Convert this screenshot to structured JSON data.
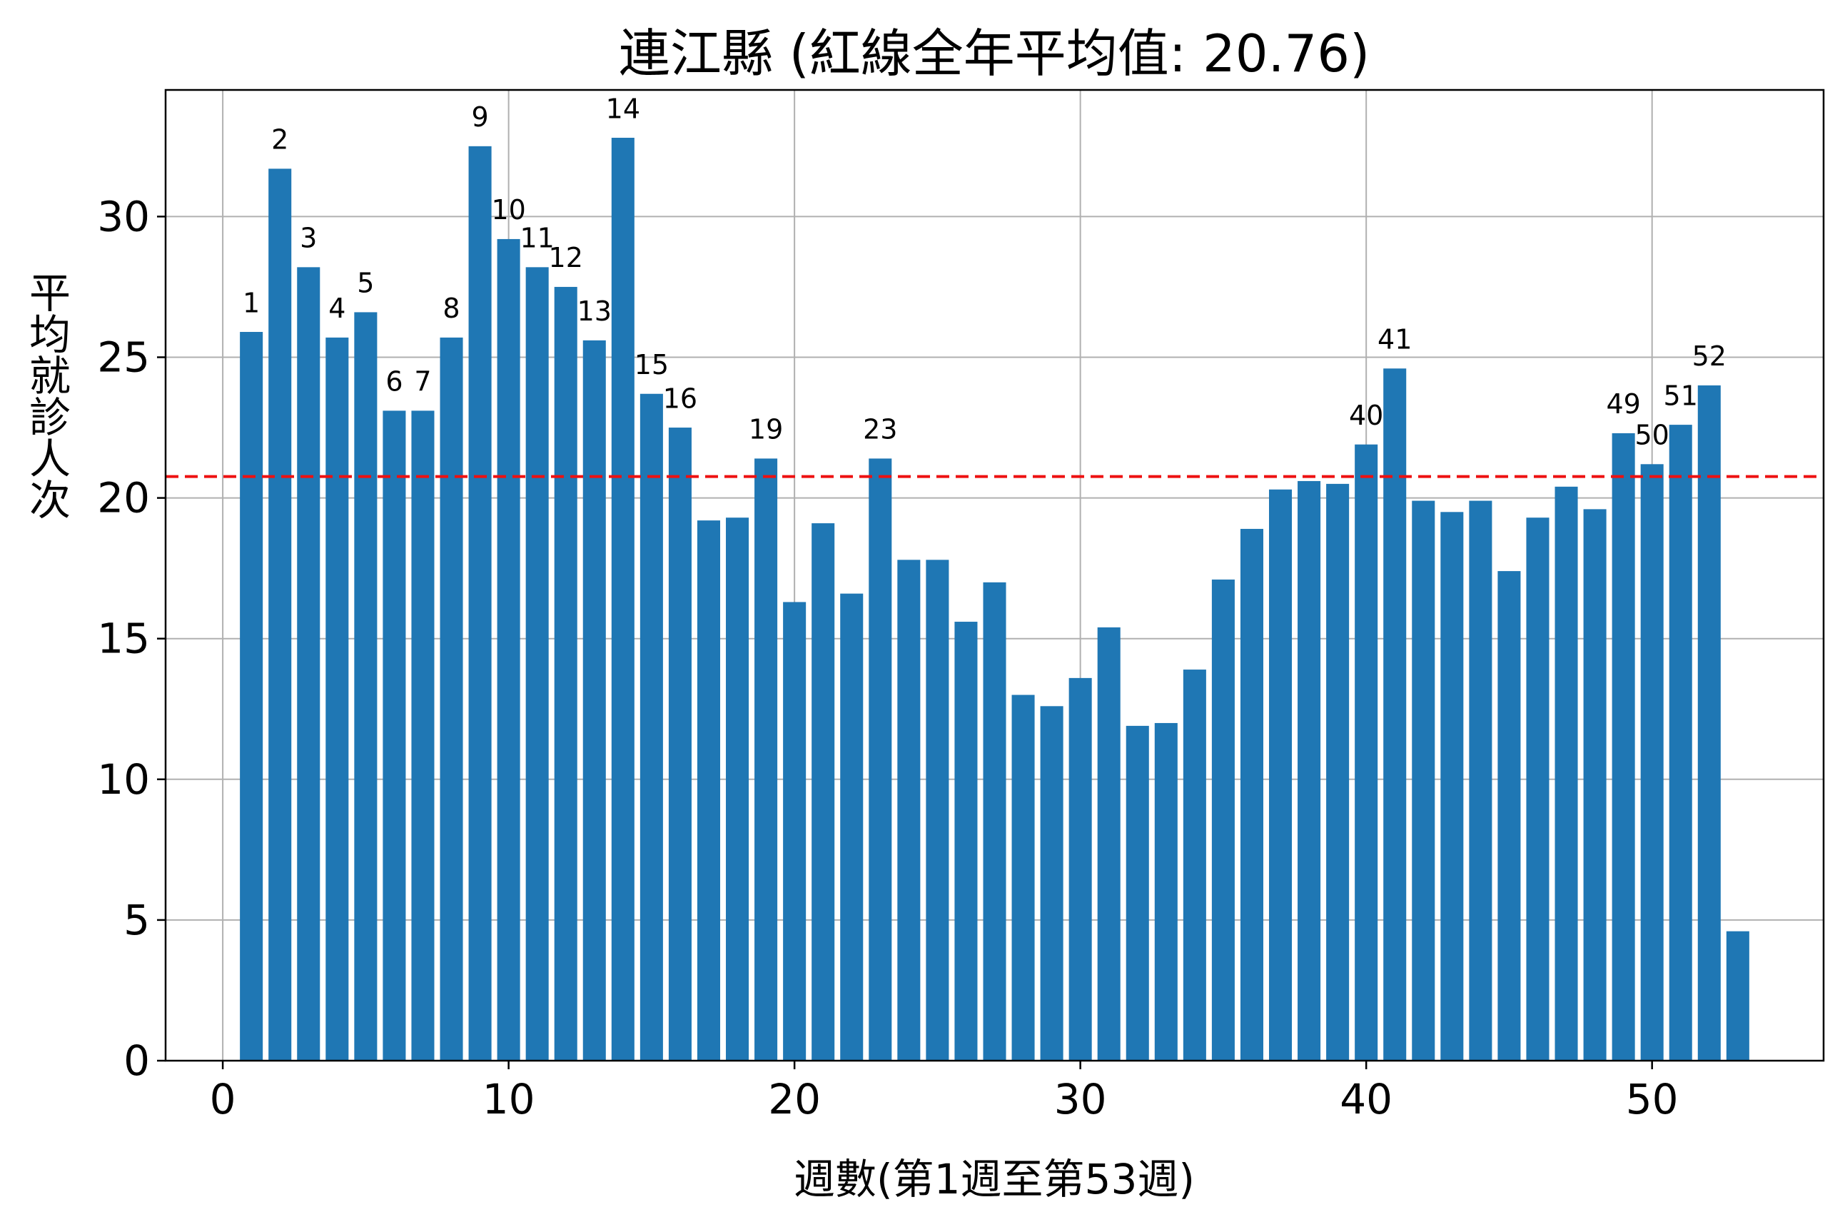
{
  "chart_data": {
    "type": "bar",
    "title": "連江縣 (紅線全年平均值: 20.76)",
    "xlabel": "週數(第1週至第53週)",
    "ylabel": "平均就診人次",
    "xlim": [
      -2,
      56
    ],
    "ylim": [
      0,
      34.5
    ],
    "xticks": [
      0,
      10,
      20,
      30,
      40,
      50
    ],
    "yticks": [
      0,
      5,
      10,
      15,
      20,
      25,
      30
    ],
    "grid": true,
    "mean_line": {
      "value": 20.76,
      "color": "#ee1111",
      "style": "dashed"
    },
    "bar_color": "#1f77b4",
    "weeks": [
      1,
      2,
      3,
      4,
      5,
      6,
      7,
      8,
      9,
      10,
      11,
      12,
      13,
      14,
      15,
      16,
      17,
      18,
      19,
      20,
      21,
      22,
      23,
      24,
      25,
      26,
      27,
      28,
      29,
      30,
      31,
      32,
      33,
      34,
      35,
      36,
      37,
      38,
      39,
      40,
      41,
      42,
      43,
      44,
      45,
      46,
      47,
      48,
      49,
      50,
      51,
      52,
      53
    ],
    "values": [
      25.9,
      31.7,
      28.2,
      25.7,
      26.6,
      23.1,
      23.1,
      25.7,
      32.5,
      29.2,
      28.2,
      27.5,
      25.6,
      32.8,
      23.7,
      22.5,
      19.2,
      19.3,
      21.4,
      16.3,
      19.1,
      16.6,
      21.4,
      17.8,
      17.8,
      15.6,
      17.0,
      13.0,
      12.6,
      13.6,
      15.4,
      11.9,
      12.0,
      13.9,
      17.1,
      18.9,
      20.3,
      20.6,
      20.5,
      21.9,
      24.6,
      19.9,
      19.5,
      19.9,
      17.4,
      19.3,
      20.4,
      19.6,
      22.3,
      21.2,
      22.6,
      24.0,
      4.6
    ],
    "labeled_weeks": [
      {
        "week": 1,
        "label": "1"
      },
      {
        "week": 2,
        "label": "2"
      },
      {
        "week": 3,
        "label": "3"
      },
      {
        "week": 4,
        "label": "4"
      },
      {
        "week": 5,
        "label": "5"
      },
      {
        "week": 6,
        "label": "6"
      },
      {
        "week": 7,
        "label": "7"
      },
      {
        "week": 8,
        "label": "8"
      },
      {
        "week": 9,
        "label": "9"
      },
      {
        "week": 10,
        "label": "10"
      },
      {
        "week": 11,
        "label": "11"
      },
      {
        "week": 12,
        "label": "12"
      },
      {
        "week": 13,
        "label": "13"
      },
      {
        "week": 14,
        "label": "14"
      },
      {
        "week": 15,
        "label": "15"
      },
      {
        "week": 16,
        "label": "16"
      },
      {
        "week": 19,
        "label": "19"
      },
      {
        "week": 23,
        "label": "23"
      },
      {
        "week": 40,
        "label": "40"
      },
      {
        "week": 41,
        "label": "41"
      },
      {
        "week": 49,
        "label": "49"
      },
      {
        "week": 50,
        "label": "50"
      },
      {
        "week": 51,
        "label": "51"
      },
      {
        "week": 52,
        "label": "52"
      }
    ]
  }
}
